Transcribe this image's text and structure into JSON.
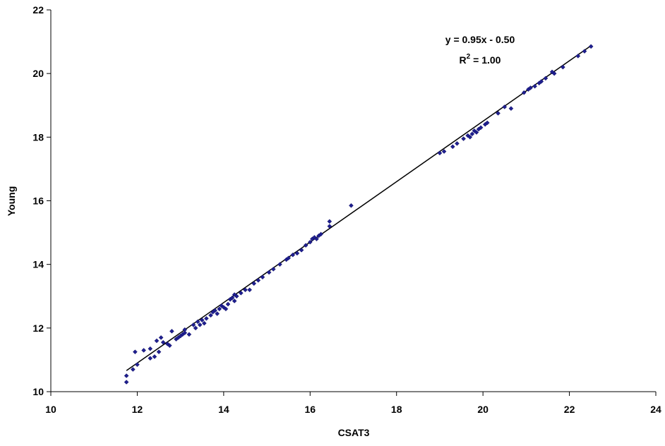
{
  "chart_data": {
    "type": "scatter",
    "title": "",
    "xlabel": "CSAT3",
    "ylabel": "Young",
    "xlim": [
      10,
      24
    ],
    "ylim": [
      10,
      22
    ],
    "xticks": [
      "10",
      "12",
      "14",
      "16",
      "18",
      "20",
      "22",
      "24"
    ],
    "yticks": [
      "10",
      "12",
      "14",
      "16",
      "18",
      "20",
      "22"
    ],
    "grid": false,
    "legend": "none",
    "marker_color": "#1f1f8f",
    "trendline": {
      "slope": 0.95,
      "intercept": -0.5,
      "x_range": [
        11.75,
        22.5
      ],
      "equation_text": "y = 0.95x - 0.50",
      "r2_prefix": "R",
      "r2_sup": "2",
      "r2_suffix": " = 1.00"
    },
    "series": [
      {
        "points": [
          [
            11.75,
            10.3
          ],
          [
            11.75,
            10.5
          ],
          [
            11.9,
            10.7
          ],
          [
            11.95,
            11.25
          ],
          [
            12.0,
            10.85
          ],
          [
            12.15,
            11.3
          ],
          [
            12.3,
            11.35
          ],
          [
            12.3,
            11.05
          ],
          [
            12.4,
            11.1
          ],
          [
            12.45,
            11.6
          ],
          [
            12.5,
            11.25
          ],
          [
            12.55,
            11.7
          ],
          [
            12.6,
            11.55
          ],
          [
            12.7,
            11.5
          ],
          [
            12.75,
            11.45
          ],
          [
            12.8,
            11.9
          ],
          [
            12.9,
            11.65
          ],
          [
            12.95,
            11.7
          ],
          [
            13.0,
            11.75
          ],
          [
            13.05,
            11.8
          ],
          [
            13.1,
            11.85
          ],
          [
            13.1,
            11.95
          ],
          [
            13.2,
            11.8
          ],
          [
            13.3,
            12.1
          ],
          [
            13.35,
            12.0
          ],
          [
            13.4,
            12.2
          ],
          [
            13.45,
            12.1
          ],
          [
            13.5,
            12.25
          ],
          [
            13.55,
            12.15
          ],
          [
            13.6,
            12.3
          ],
          [
            13.7,
            12.4
          ],
          [
            13.75,
            12.5
          ],
          [
            13.8,
            12.55
          ],
          [
            13.85,
            12.45
          ],
          [
            13.9,
            12.6
          ],
          [
            13.95,
            12.7
          ],
          [
            14.0,
            12.65
          ],
          [
            14.05,
            12.6
          ],
          [
            14.1,
            12.75
          ],
          [
            14.15,
            12.9
          ],
          [
            14.2,
            12.95
          ],
          [
            14.25,
            12.85
          ],
          [
            14.25,
            13.05
          ],
          [
            14.3,
            13.0
          ],
          [
            14.4,
            13.1
          ],
          [
            14.5,
            13.2
          ],
          [
            14.6,
            13.2
          ],
          [
            14.7,
            13.4
          ],
          [
            14.8,
            13.5
          ],
          [
            14.9,
            13.6
          ],
          [
            15.05,
            13.75
          ],
          [
            15.15,
            13.85
          ],
          [
            15.3,
            14.0
          ],
          [
            15.45,
            14.15
          ],
          [
            15.5,
            14.2
          ],
          [
            15.6,
            14.3
          ],
          [
            15.7,
            14.35
          ],
          [
            15.8,
            14.45
          ],
          [
            15.9,
            14.6
          ],
          [
            16.0,
            14.7
          ],
          [
            16.05,
            14.8
          ],
          [
            16.1,
            14.85
          ],
          [
            16.15,
            14.8
          ],
          [
            16.2,
            14.9
          ],
          [
            16.25,
            14.95
          ],
          [
            16.45,
            15.2
          ],
          [
            16.45,
            15.35
          ],
          [
            16.95,
            15.85
          ],
          [
            19.0,
            17.5
          ],
          [
            19.1,
            17.55
          ],
          [
            19.3,
            17.7
          ],
          [
            19.4,
            17.8
          ],
          [
            19.55,
            17.95
          ],
          [
            19.65,
            18.05
          ],
          [
            19.7,
            18.0
          ],
          [
            19.75,
            18.1
          ],
          [
            19.8,
            18.2
          ],
          [
            19.85,
            18.15
          ],
          [
            19.9,
            18.25
          ],
          [
            19.95,
            18.3
          ],
          [
            20.05,
            18.4
          ],
          [
            20.1,
            18.45
          ],
          [
            20.35,
            18.75
          ],
          [
            20.5,
            18.95
          ],
          [
            20.65,
            18.9
          ],
          [
            20.95,
            19.4
          ],
          [
            21.05,
            19.5
          ],
          [
            21.1,
            19.55
          ],
          [
            21.2,
            19.6
          ],
          [
            21.3,
            19.7
          ],
          [
            21.35,
            19.75
          ],
          [
            21.45,
            19.85
          ],
          [
            21.6,
            20.05
          ],
          [
            21.65,
            20.0
          ],
          [
            21.85,
            20.2
          ],
          [
            22.2,
            20.55
          ],
          [
            22.35,
            20.7
          ],
          [
            22.5,
            20.85
          ]
        ]
      }
    ]
  }
}
